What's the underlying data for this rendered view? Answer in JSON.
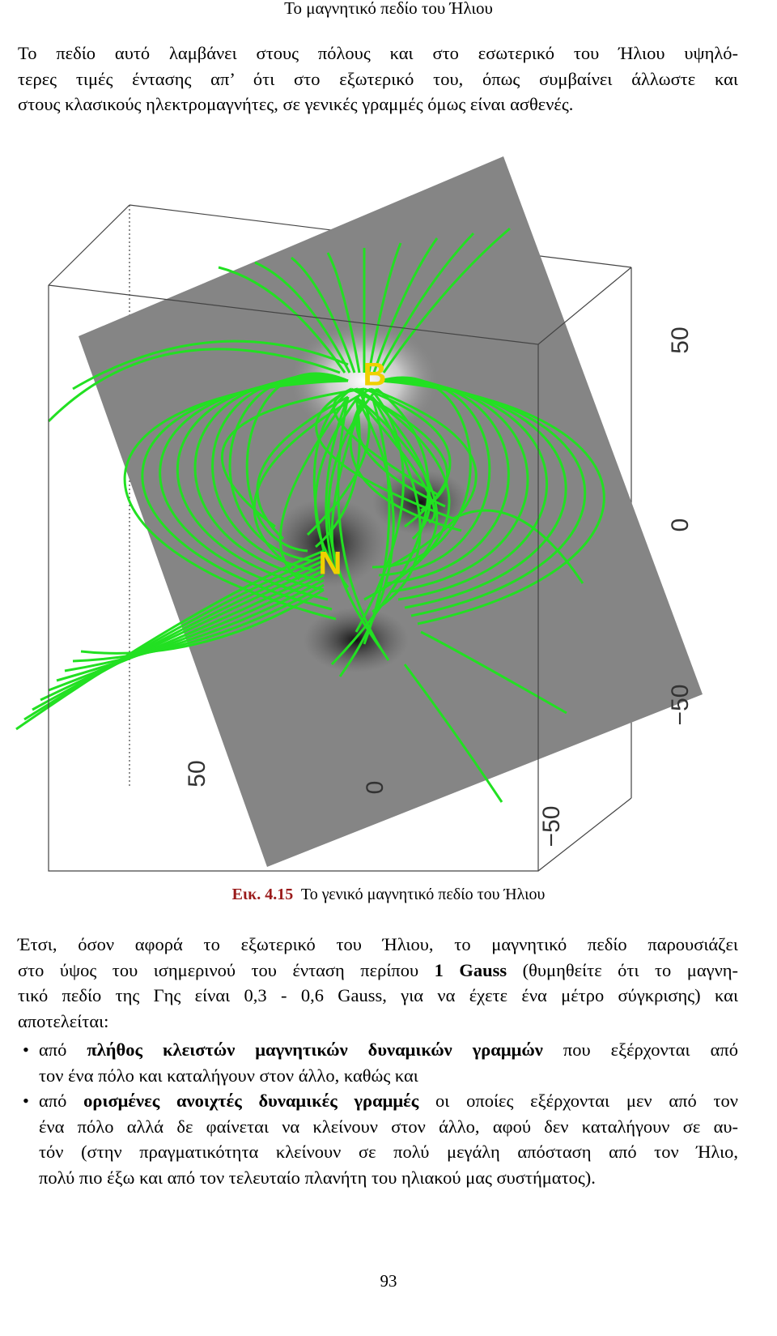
{
  "header": "Το μαγνητικό πεδίο του Ήλιου",
  "paragraph_1": [
    "Το πεδίο αυτό λαμβάνει στους πόλους και στο εσωτερικό του Ήλιου υψηλό-",
    "τερες τιμές έντασης απ’ ότι στο εξωτερικό του, όπως συμβαίνει άλλωστε και",
    "στους κλασικούς ηλεκτρομαγνήτες, σε γενικές γραμμές όμως είναι ασθενές."
  ],
  "figure": {
    "pole_labels": [
      "B",
      "N"
    ],
    "right_axis_labels": [
      "50",
      "0",
      "−50"
    ],
    "bottom_axis_labels": [
      "50",
      "0",
      "−50"
    ]
  },
  "caption": {
    "number": "Εικ. 4.15",
    "text": "Το γενικό μαγνητικό πεδίο του Ήλιου"
  },
  "paragraph_2": [
    [
      "Έτσι, όσον αφορά το εξωτερικό του Ήλιου, το μαγνητικό πεδίο παρουσιάζει"
    ],
    [
      "στο ύψος του ισημερινού του ένταση περίπου ",
      "1 Gauss",
      " (θυμηθείτε ότι το μαγνη-"
    ],
    [
      "τικό πεδίο της Γης είναι 0,3 - 0,6 Gauss, για να έχετε ένα μέτρο σύγκρισης) και"
    ],
    [
      "αποτελείται:"
    ]
  ],
  "bullets": [
    [
      [
        "από ",
        "πλήθος κλειστών μαγνητικών δυναμικών γραμμών",
        " που εξέρχονται από"
      ],
      [
        "τον ένα πόλο και καταλήγουν στον άλλο, καθώς και"
      ]
    ],
    [
      [
        "από ",
        "ορισμένες ανοιχτές δυναμικές γραμμές",
        " οι οποίες εξέρχονται μεν από τον"
      ],
      [
        "ένα πόλο αλλά δε φαίνεται να κλείνουν στον άλλο, αφού δεν καταλήγουν σε αυ-"
      ],
      [
        "τόν (στην πραγματικότητα κλείνουν σε πολύ μεγάλη απόσταση από τον Ήλιο,"
      ],
      [
        "πολύ πιο έξω και από τον τελευταίο πλανήτη του ηλιακού μας συστήματος)."
      ]
    ]
  ],
  "page_number": "93"
}
